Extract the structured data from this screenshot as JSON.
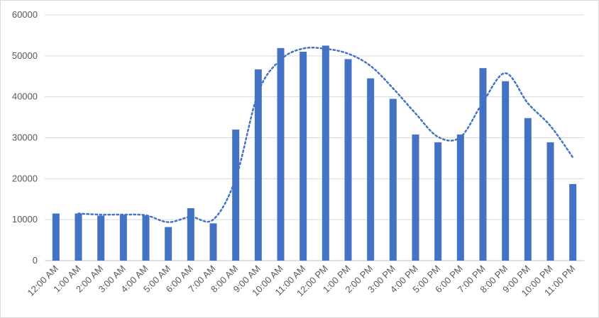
{
  "chart_data": {
    "type": "bar",
    "title": "",
    "xlabel": "",
    "ylabel": "",
    "ylim": [
      0,
      60000
    ],
    "yticks": [
      0,
      10000,
      20000,
      30000,
      40000,
      50000,
      60000
    ],
    "grid": true,
    "categories": [
      "12:00 AM",
      "1:00 AM",
      "2:00 AM",
      "3:00 AM",
      "4:00 AM",
      "5:00 AM",
      "6:00 AM",
      "7:00 AM",
      "8:00 AM",
      "9:00 AM",
      "10:00 AM",
      "11:00 AM",
      "12:00 PM",
      "1:00 PM",
      "2:00 PM",
      "3:00 PM",
      "4:00 PM",
      "5:00 PM",
      "6:00 PM",
      "7:00 PM",
      "8:00 PM",
      "9:00 PM",
      "10:00 PM",
      "11:00 PM"
    ],
    "series": [
      {
        "type": "bar",
        "color": "#4472c4",
        "values": [
          11500,
          11500,
          11000,
          11200,
          11000,
          8200,
          12800,
          9100,
          32000,
          46700,
          51900,
          51000,
          52500,
          49200,
          44500,
          39500,
          30800,
          28900,
          30800,
          47000,
          43800,
          34800,
          28900,
          18700
        ]
      },
      {
        "type": "line",
        "style": "dotted",
        "color": "#4472c4",
        "values": [
          null,
          11500,
          11233,
          11233,
          11067,
          9400,
          10667,
          10033,
          20083,
          41033,
          49050,
          51783,
          51717,
          50533,
          47533,
          42067,
          35933,
          30217,
          30167,
          38700,
          45767,
          38417,
          32900,
          25200
        ]
      }
    ]
  }
}
